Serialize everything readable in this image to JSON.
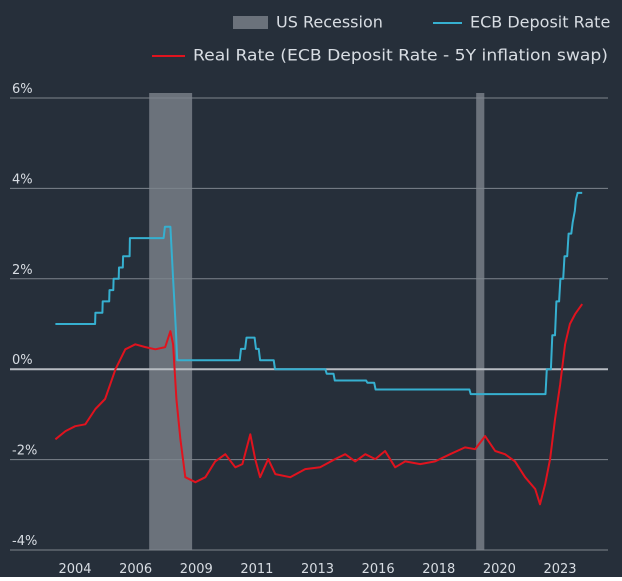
{
  "chart_data": {
    "type": "line",
    "background": "#262f3a",
    "xlim": [
      2002.8,
      2024.8
    ],
    "ylim": [
      -4,
      6
    ],
    "yticks": [
      {
        "value": -4,
        "label": "-4%"
      },
      {
        "value": -2,
        "label": "-2%"
      },
      {
        "value": 0,
        "label": "0%"
      },
      {
        "value": 2,
        "label": "2%"
      },
      {
        "value": 4,
        "label": "4%"
      },
      {
        "value": 6,
        "label": "6%"
      }
    ],
    "xtick_labels": [
      "2004",
      "2006",
      "2009",
      "2011",
      "2013",
      "2016",
      "2018",
      "2020",
      "2023"
    ],
    "grid": true,
    "shaded": {
      "name": "US Recession",
      "color": "#6b727b",
      "spans": [
        [
          2007.92,
          2009.5
        ],
        [
          2019.95,
          2020.25
        ]
      ]
    },
    "series": [
      {
        "name": "ECB Deposit Rate",
        "color": "#36b0d0",
        "x": [
          2004.47,
          2005.93,
          2005.94,
          2006.2,
          2006.21,
          2006.45,
          2006.46,
          2006.6,
          2006.61,
          2006.8,
          2006.81,
          2006.95,
          2006.96,
          2007.2,
          2007.21,
          2008.45,
          2008.5,
          2008.7,
          2008.8,
          2008.9,
          2008.95,
          2011.25,
          2011.3,
          2011.45,
          2011.5,
          2011.8,
          2011.85,
          2011.95,
          2012.0,
          2012.5,
          2012.55,
          2014.4,
          2014.45,
          2014.7,
          2014.75,
          2015.9,
          2015.95,
          2016.2,
          2016.25,
          2019.7,
          2019.75,
          2022.5,
          2022.55,
          2022.7,
          2022.75,
          2022.85,
          2022.9,
          2023.0,
          2023.05,
          2023.15,
          2023.2,
          2023.3,
          2023.35,
          2023.45,
          2023.5,
          2023.58,
          2023.62,
          2023.68,
          2023.85
        ],
        "values": [
          1.0,
          1.0,
          1.25,
          1.25,
          1.5,
          1.5,
          1.75,
          1.75,
          2.0,
          2.0,
          2.25,
          2.25,
          2.5,
          2.5,
          2.9,
          2.9,
          3.15,
          3.15,
          2.0,
          0.9,
          0.2,
          0.2,
          0.45,
          0.45,
          0.7,
          0.7,
          0.45,
          0.45,
          0.2,
          0.2,
          0.0,
          0.0,
          -0.1,
          -0.1,
          -0.25,
          -0.25,
          -0.3,
          -0.3,
          -0.45,
          -0.45,
          -0.55,
          -0.55,
          0.0,
          0.0,
          0.75,
          0.75,
          1.5,
          1.5,
          2.0,
          2.0,
          2.5,
          2.5,
          3.0,
          3.0,
          3.25,
          3.5,
          3.75,
          3.9,
          3.9
        ]
      },
      {
        "name": "Real Rate (ECB Deposit Rate - 5Y inflation swap)",
        "color": "#e0131e",
        "x": [
          2004.47,
          2004.84,
          2005.2,
          2005.57,
          2005.94,
          2006.3,
          2006.68,
          2007.04,
          2007.41,
          2007.78,
          2008.15,
          2008.51,
          2008.7,
          2008.8,
          2008.92,
          2009.07,
          2009.25,
          2009.62,
          2009.99,
          2010.35,
          2010.72,
          2011.09,
          2011.35,
          2011.64,
          2011.82,
          2012.0,
          2012.3,
          2012.56,
          2013.11,
          2013.66,
          2014.21,
          2014.76,
          2015.13,
          2015.5,
          2015.87,
          2016.24,
          2016.6,
          2016.97,
          2017.34,
          2017.89,
          2018.44,
          2018.99,
          2019.54,
          2019.91,
          2020.28,
          2020.65,
          2021.01,
          2021.38,
          2021.75,
          2022.12,
          2022.3,
          2022.49,
          2022.67,
          2022.85,
          2023.04,
          2023.22,
          2023.4,
          2023.59,
          2023.85
        ],
        "values": [
          -1.55,
          -1.37,
          -1.26,
          -1.22,
          -0.88,
          -0.66,
          0.0,
          0.44,
          0.55,
          0.49,
          0.44,
          0.49,
          0.84,
          0.55,
          -0.66,
          -1.55,
          -2.39,
          -2.5,
          -2.39,
          -2.04,
          -1.88,
          -2.17,
          -2.1,
          -1.44,
          -1.99,
          -2.39,
          -1.99,
          -2.32,
          -2.39,
          -2.21,
          -2.17,
          -1.99,
          -1.88,
          -2.04,
          -1.88,
          -1.99,
          -1.81,
          -2.17,
          -2.04,
          -2.1,
          -2.04,
          -1.88,
          -1.73,
          -1.77,
          -1.48,
          -1.81,
          -1.88,
          -2.04,
          -2.39,
          -2.65,
          -2.99,
          -2.54,
          -1.99,
          -1.11,
          -0.33,
          0.55,
          1.0,
          1.22,
          1.44
        ]
      }
    ]
  }
}
